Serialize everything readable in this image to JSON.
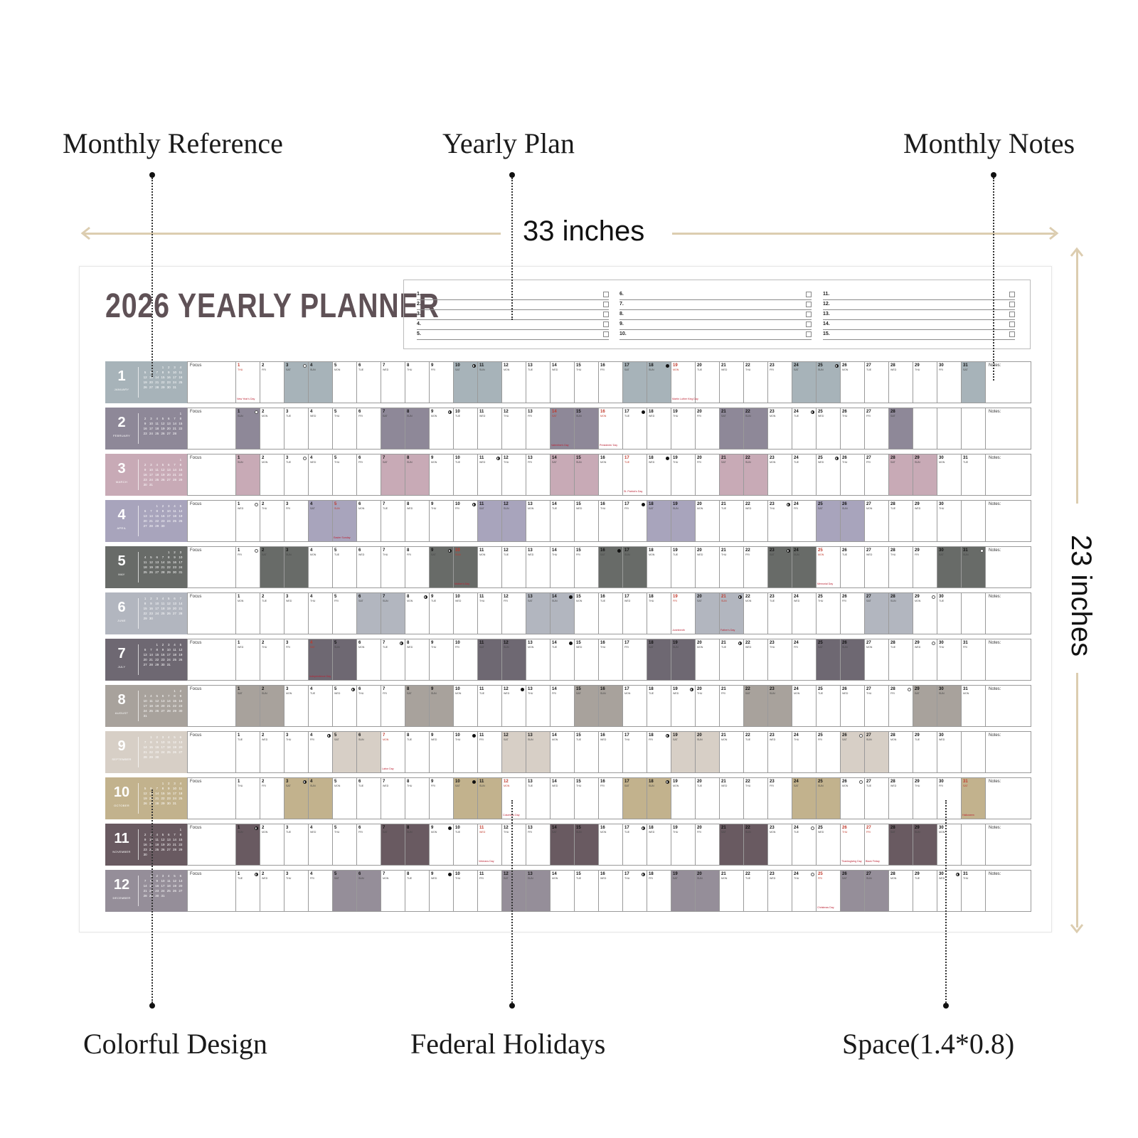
{
  "callouts": {
    "monthly_reference": "Monthly Reference",
    "yearly_plan": "Yearly Plan",
    "monthly_notes": "Monthly Notes",
    "colorful_design": "Colorful Design",
    "federal_holidays": "Federal Holidays",
    "space": "Space(1.4*0.8)"
  },
  "dimensions": {
    "width_label": "33 inches",
    "height_label": "23 inches",
    "line_color": "#dccdb0"
  },
  "planner": {
    "title": "2026 YEARLY PLANNER",
    "title_color": "#5f5156",
    "plan_items": [
      "1.",
      "2.",
      "3.",
      "4.",
      "5.",
      "6.",
      "7.",
      "8.",
      "9.",
      "10.",
      "11.",
      "12.",
      "13.",
      "14.",
      "15."
    ],
    "focus_label": "Focus",
    "notes_label": "Notes:",
    "months": [
      {
        "num": "1",
        "name": "JANUARY",
        "color": "#a7b3b9",
        "start": 4,
        "days": 31,
        "holidays": {
          "1": "New Year's Day",
          "19": "Martin Luther King Day"
        },
        "moons": {
          "3": "full",
          "10": "half",
          "18": "new",
          "25": "half"
        }
      },
      {
        "num": "2",
        "name": "FEBRUARY",
        "color": "#8e8898",
        "start": 0,
        "days": 28,
        "holidays": {
          "14": "Valentine's Day",
          "16": "Presidents' Day"
        },
        "moons": {
          "1": "full",
          "9": "half",
          "17": "new",
          "24": "half"
        }
      },
      {
        "num": "3",
        "name": "MARCH",
        "color": "#c8aab6",
        "start": 0,
        "days": 31,
        "holidays": {
          "17": "St. Patrick's Day"
        },
        "moons": {
          "3": "full",
          "11": "half",
          "18": "new",
          "25": "half"
        }
      },
      {
        "num": "4",
        "name": "APRIL",
        "color": "#a8a4bc",
        "start": 3,
        "days": 30,
        "holidays": {
          "5": "Easter Sunday"
        },
        "moons": {
          "1": "full",
          "10": "half",
          "17": "new",
          "23": "half"
        }
      },
      {
        "num": "5",
        "name": "MAY",
        "color": "#686b68",
        "start": 5,
        "days": 31,
        "holidays": {
          "10": "Mother's Day",
          "25": "Memorial Day"
        },
        "moons": {
          "1": "full",
          "9": "half",
          "16": "new",
          "23": "half",
          "31": "full"
        }
      },
      {
        "num": "6",
        "name": "JUNE",
        "color": "#b2b6bf",
        "start": 1,
        "days": 30,
        "holidays": {
          "19": "Juneteenth",
          "21": "Father's Day"
        },
        "moons": {
          "8": "half",
          "14": "new",
          "21": "half",
          "29": "full"
        }
      },
      {
        "num": "7",
        "name": "JULY",
        "color": "#6e6872",
        "start": 3,
        "days": 31,
        "holidays": {
          "4": "Independence Day"
        },
        "moons": {
          "7": "half",
          "14": "new",
          "21": "half",
          "29": "full"
        }
      },
      {
        "num": "8",
        "name": "AUGUST",
        "color": "#a8a29c",
        "start": 6,
        "days": 31,
        "holidays": {},
        "moons": {
          "5": "half",
          "12": "new",
          "19": "half",
          "28": "full"
        }
      },
      {
        "num": "9",
        "name": "SEPTEMBER",
        "color": "#d7cfc6",
        "start": 2,
        "days": 30,
        "holidays": {
          "7": "Labor Day"
        },
        "moons": {
          "4": "half",
          "10": "new",
          "18": "half",
          "26": "full"
        }
      },
      {
        "num": "10",
        "name": "OCTOBER",
        "color": "#c2b28d",
        "start": 4,
        "days": 31,
        "holidays": {
          "12": "Columbus Day",
          "31": "Halloween"
        },
        "moons": {
          "3": "half",
          "10": "new",
          "18": "half",
          "26": "full"
        }
      },
      {
        "num": "11",
        "name": "NOVEMBER",
        "color": "#695a61",
        "start": 0,
        "days": 30,
        "holidays": {
          "11": "Veterans Day",
          "26": "Thanksgiving Day",
          "27": "Black Friday"
        },
        "moons": {
          "1": "half",
          "9": "new",
          "17": "half",
          "24": "full"
        }
      },
      {
        "num": "12",
        "name": "DECEMBER",
        "color": "#958e99",
        "start": 2,
        "days": 31,
        "holidays": {
          "25": "Christmas Day"
        },
        "moons": {
          "1": "half",
          "9": "new",
          "17": "half",
          "24": "full",
          "30": "half"
        }
      }
    ]
  }
}
